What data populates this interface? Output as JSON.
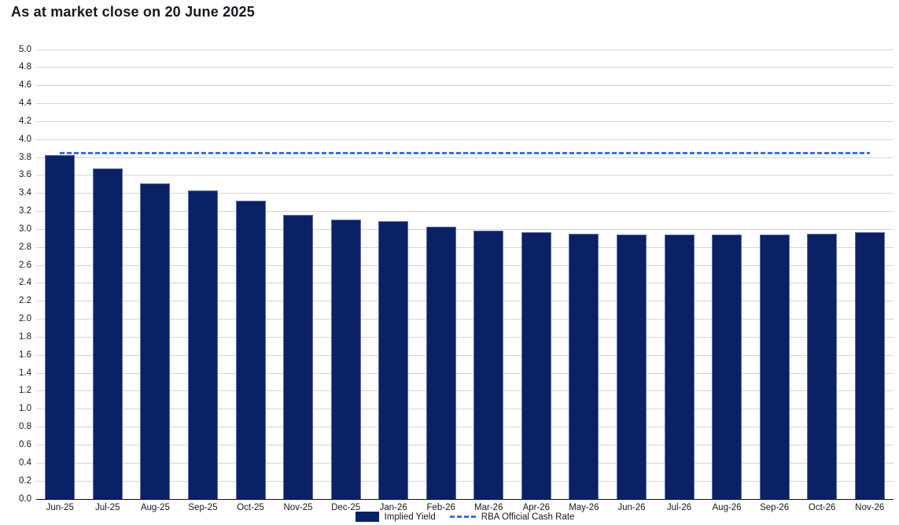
{
  "title": "As at market close on 20 June 2025",
  "chart_data": {
    "type": "bar",
    "title": "As at market close on 20 June 2025",
    "categories": [
      "Jun-25",
      "Jul-25",
      "Aug-25",
      "Sep-25",
      "Oct-25",
      "Nov-25",
      "Dec-25",
      "Jan-26",
      "Feb-26",
      "Mar-26",
      "Apr-26",
      "May-26",
      "Jun-26",
      "Jul-26",
      "Aug-26",
      "Sep-26",
      "Oct-26",
      "Nov-26"
    ],
    "series": [
      {
        "name": "Implied Yield",
        "type": "bar",
        "color": "#0a2166",
        "values": [
          3.83,
          3.68,
          3.51,
          3.43,
          3.32,
          3.16,
          3.11,
          3.09,
          3.03,
          2.99,
          2.97,
          2.95,
          2.94,
          2.94,
          2.94,
          2.94,
          2.95,
          2.97
        ]
      },
      {
        "name": "RBA Official Cash Rate",
        "type": "line",
        "style": "dashed",
        "color": "#3e6bf2",
        "value": 3.85
      }
    ],
    "xlabel": "",
    "ylabel": "",
    "ylim": [
      0.0,
      5.0
    ],
    "ytick_step": 0.2,
    "ytick_format": "one-decimal",
    "grid": "horizontal",
    "gridline_color": "#d6d6d6",
    "legend_position": "bottom-center"
  },
  "legend": {
    "items": [
      {
        "label": "Implied Yield",
        "swatch": "navy-filled-rect"
      },
      {
        "label": "RBA Official Cash Rate",
        "swatch": "blue-dashed-line"
      }
    ]
  },
  "colors": {
    "background": "#ffffff",
    "bar_fill": "#0a2166",
    "bar_border": "#5d6da6",
    "dashed_line": "#3e6bf2",
    "grid": "#d6d6d6",
    "axis": "#111111",
    "text": "#17171f"
  }
}
